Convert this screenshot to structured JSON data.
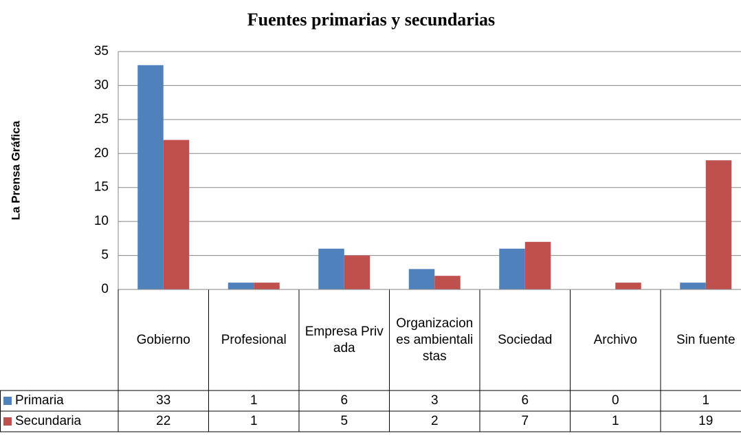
{
  "chart_data": {
    "type": "bar",
    "title": "Fuentes primarias y secundarias",
    "y_label": "La Prensa Gráfica",
    "categories": [
      "Gobierno",
      "Profesional",
      "Empresa Privada",
      "Organizaciones ambientalistas",
      "Sociedad",
      "Archivo",
      "Sin fuente"
    ],
    "series": [
      {
        "name": "Primaria",
        "color": "#4f81bd",
        "values": [
          33,
          1,
          6,
          3,
          6,
          0,
          1
        ]
      },
      {
        "name": "Secundaria",
        "color": "#c0504d",
        "values": [
          22,
          1,
          5,
          2,
          7,
          1,
          19
        ]
      }
    ],
    "ylim": [
      0,
      35
    ],
    "yticks": [
      0,
      5,
      10,
      15,
      20,
      25,
      30,
      35
    ],
    "grid": true
  }
}
